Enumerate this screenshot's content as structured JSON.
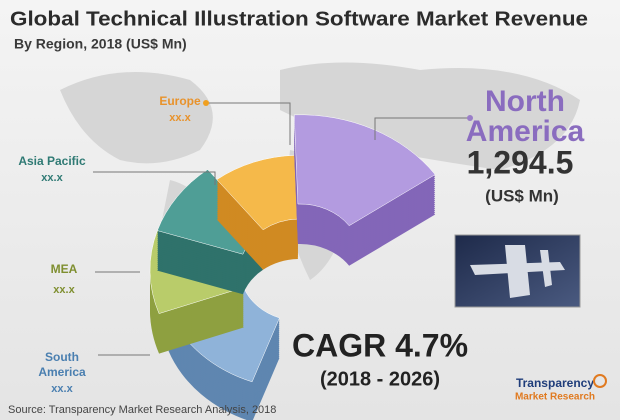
{
  "header": {
    "title": "Global Technical Illustration Software Market Revenue",
    "subtitle": "By Region, 2018 (US$ Mn)"
  },
  "regions": [
    {
      "name_lines": [
        "North",
        "America"
      ],
      "value": "1,294.5",
      "unit": "(US$ Mn)"
    },
    {
      "name_lines": [
        "Europe"
      ],
      "value": "xx.x"
    },
    {
      "name_lines": [
        "Asia Pacific"
      ],
      "value": "xx.x"
    },
    {
      "name_lines": [
        "MEA"
      ],
      "value": "xx.x"
    },
    {
      "name_lines": [
        "South",
        "America"
      ],
      "value": "xx.x"
    }
  ],
  "cagr": {
    "label": "CAGR 4.7%",
    "period": "(2018 - 2026)"
  },
  "source": "Source: Transparency Market Research Analysis, 2018",
  "logo": {
    "name": "Transparency",
    "subname": "Market Research"
  }
}
